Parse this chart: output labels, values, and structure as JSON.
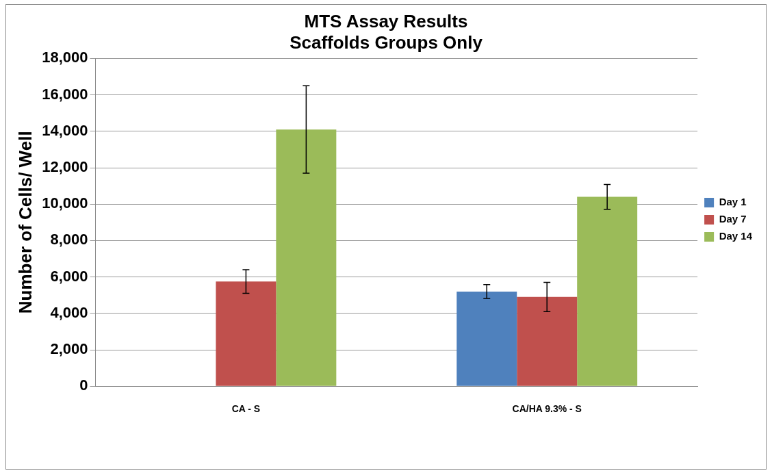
{
  "chart_data": {
    "type": "bar",
    "title": "MTS Assay Results\nScaffolds Groups Only",
    "ylabel": "Number of Cells/ Well",
    "categories": [
      "CA - S",
      "CA/HA 9.3% - S"
    ],
    "series": [
      {
        "name": "Day 1",
        "color": "#4f81bd",
        "values": [
          null,
          5200
        ],
        "errors": [
          null,
          380
        ]
      },
      {
        "name": "Day 7",
        "color": "#c0504d",
        "values": [
          5750,
          4900
        ],
        "errors": [
          650,
          800
        ]
      },
      {
        "name": "Day 14",
        "color": "#9bbb59",
        "values": [
          14100,
          10400
        ],
        "errors": [
          2400,
          680
        ]
      }
    ],
    "ylim": [
      0,
      18000
    ],
    "yticks": [
      {
        "value": 0,
        "label": "0"
      },
      {
        "value": 2000,
        "label": "2,000"
      },
      {
        "value": 4000,
        "label": "4,000"
      },
      {
        "value": 6000,
        "label": "6,000"
      },
      {
        "value": 8000,
        "label": "8,000"
      },
      {
        "value": 10000,
        "label": "10,000"
      },
      {
        "value": 12000,
        "label": "12,000"
      },
      {
        "value": 14000,
        "label": "14,000"
      },
      {
        "value": 16000,
        "label": "16,000"
      },
      {
        "value": 18000,
        "label": "18,000"
      }
    ],
    "grid": "y",
    "legend": "right"
  }
}
